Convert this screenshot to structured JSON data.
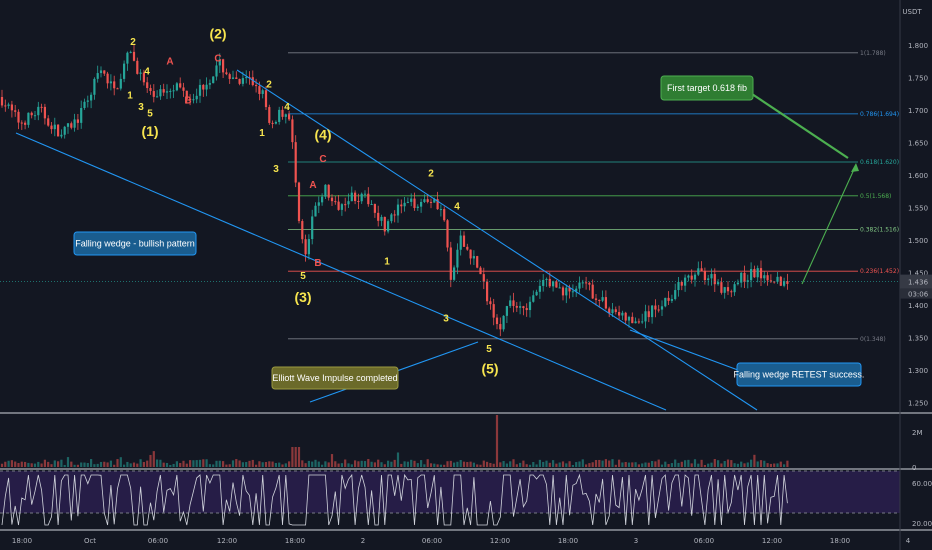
{
  "currency": "USDT",
  "price_now": "1.436",
  "countdown": "03:06",
  "colors": {
    "bg": "#131722",
    "up": "#26a69a",
    "down": "#ef5350",
    "trend": "#2196f3",
    "wave": "#f7e54f",
    "waveAlt": "#ef5350",
    "fib": "#787b86"
  },
  "chart_data": {
    "type": "candlestick",
    "y_ticks": [
      "1.800",
      "1.750",
      "1.700",
      "1.650",
      "1.600",
      "1.550",
      "1.500",
      "1.450",
      "1.400",
      "1.350",
      "1.300",
      "1.250"
    ],
    "ylim": [
      1.215,
      1.825
    ],
    "x_ticks": [
      "18:00",
      "Oct",
      "06:00",
      "12:00",
      "18:00",
      "2",
      "06:00",
      "12:00",
      "18:00",
      "3",
      "06:00",
      "12:00",
      "18:00",
      "4"
    ],
    "fib_levels": [
      {
        "ratio": 1,
        "price": 1.788,
        "label": "1(1.788)",
        "color": "#787b86"
      },
      {
        "ratio": 0.786,
        "price": 1.694,
        "label": "0.786(1.694)",
        "color": "#2196f3"
      },
      {
        "ratio": 0.618,
        "price": 1.62,
        "label": "0.618(1.620)",
        "color": "#26a69a"
      },
      {
        "ratio": 0.5,
        "price": 1.568,
        "label": "0.5(1.568)",
        "color": "#4caf50"
      },
      {
        "ratio": 0.382,
        "price": 1.516,
        "label": "0.382(1.516)",
        "color": "#81c784"
      },
      {
        "ratio": 0.236,
        "price": 1.452,
        "label": "0.236(1.452)",
        "color": "#ef5350"
      },
      {
        "ratio": 0,
        "price": 1.348,
        "label": "0(1.348)",
        "color": "#787b86"
      }
    ],
    "volume_ticks": [
      "2M",
      "0"
    ],
    "rsi_ticks": [
      "60.00",
      "20.00"
    ],
    "elliott_labels": [
      {
        "text": "2",
        "price": 1.8,
        "kind": "minor"
      },
      {
        "text": "4",
        "price": 1.755,
        "kind": "minor"
      },
      {
        "text": "1",
        "price": 1.718,
        "kind": "minor"
      },
      {
        "text": "3",
        "price": 1.7,
        "kind": "minor"
      },
      {
        "text": "5",
        "price": 1.69,
        "kind": "minor"
      },
      {
        "text": "A",
        "price": 1.77,
        "kind": "alt"
      },
      {
        "text": "B",
        "price": 1.71,
        "kind": "alt"
      },
      {
        "text": "C",
        "price": 1.775,
        "kind": "alt"
      },
      {
        "text": "(1)",
        "price": 1.66,
        "kind": "major"
      },
      {
        "text": "(2)",
        "price": 1.81,
        "kind": "major"
      },
      {
        "text": "2",
        "price": 1.735,
        "kind": "minor"
      },
      {
        "text": "4",
        "price": 1.7,
        "kind": "minor"
      },
      {
        "text": "1",
        "price": 1.66,
        "kind": "minor"
      },
      {
        "text": "3",
        "price": 1.605,
        "kind": "minor"
      },
      {
        "text": "(4)",
        "price": 1.655,
        "kind": "major"
      },
      {
        "text": "C",
        "price": 1.62,
        "kind": "alt"
      },
      {
        "text": "A",
        "price": 1.58,
        "kind": "alt"
      },
      {
        "text": "5",
        "price": 1.44,
        "kind": "minor"
      },
      {
        "text": "B",
        "price": 1.46,
        "kind": "alt"
      },
      {
        "text": "(3)",
        "price": 1.405,
        "kind": "major"
      },
      {
        "text": "1",
        "price": 1.462,
        "kind": "minor"
      },
      {
        "text": "2",
        "price": 1.598,
        "kind": "minor"
      },
      {
        "text": "4",
        "price": 1.547,
        "kind": "minor"
      },
      {
        "text": "3",
        "price": 1.375,
        "kind": "minor"
      },
      {
        "text": "5",
        "price": 1.328,
        "kind": "minor"
      },
      {
        "text": "(5)",
        "price": 1.295,
        "kind": "major"
      }
    ],
    "annotations": [
      "Falling wedge - bullish pattern",
      "Elliott Wave Impulse completed",
      "Falling wedge RETEST success.",
      "First target 0.618 fib"
    ]
  }
}
